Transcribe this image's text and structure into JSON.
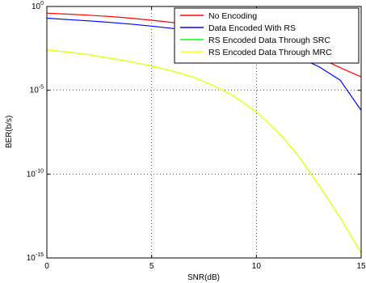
{
  "chart_data": {
    "type": "line",
    "title": "",
    "xlabel": "SNR(dB)",
    "ylabel": "BER(b/s)",
    "xlim": [
      0,
      15
    ],
    "ylim_log10": [
      -15,
      0
    ],
    "yscale": "log",
    "grid": true,
    "legend_position": "top-right",
    "x_ticks": [
      "0",
      "5",
      "10",
      "15"
    ],
    "y_ticks": [
      {
        "base": "10",
        "exp": "0",
        "log10": 0
      },
      {
        "base": "10",
        "exp": "-5",
        "log10": -5
      },
      {
        "base": "10",
        "exp": "-10",
        "log10": -10
      },
      {
        "base": "10",
        "exp": "-15",
        "log10": -15
      }
    ],
    "series": [
      {
        "name": "No Encoding",
        "color": "#ff0000",
        "x": [
          0,
          1,
          2,
          3,
          4,
          5,
          6,
          7,
          8,
          9,
          10,
          11,
          12,
          13,
          14,
          15
        ],
        "log10_y": [
          -0.4,
          -0.46,
          -0.52,
          -0.6,
          -0.7,
          -0.82,
          -0.96,
          -1.13,
          -1.33,
          -1.56,
          -1.84,
          -2.17,
          -2.57,
          -3.06,
          -3.65,
          -4.2
        ]
      },
      {
        "name": "Data Encoded With RS",
        "color": "#0000ff",
        "x": [
          0,
          1,
          2,
          3,
          4,
          5,
          6,
          7,
          8,
          9,
          10,
          11,
          12,
          13,
          14,
          15
        ],
        "log10_y": [
          -0.7,
          -0.78,
          -0.86,
          -0.95,
          -1.05,
          -1.17,
          -1.31,
          -1.48,
          -1.68,
          -1.92,
          -2.22,
          -2.58,
          -3.02,
          -3.6,
          -4.4,
          -6.2
        ]
      },
      {
        "name": "RS Encoded Data Through SRC",
        "color": "#00ff00",
        "x": [
          0,
          1,
          2,
          3,
          4,
          5,
          6,
          7,
          8,
          9,
          10,
          11,
          12,
          13,
          14,
          15
        ],
        "log10_y": [
          -2.6,
          -2.72,
          -2.88,
          -3.08,
          -3.3,
          -3.55,
          -3.85,
          -4.22,
          -4.75,
          -5.4,
          -6.3,
          -7.45,
          -8.9,
          -10.7,
          -12.6,
          -14.7
        ]
      },
      {
        "name": "RS Encoded Data Through MRC",
        "color": "#ffff00",
        "x": [
          0,
          1,
          2,
          3,
          4,
          5,
          6,
          7,
          8,
          9,
          10,
          11,
          12,
          13,
          14,
          15
        ],
        "log10_y": [
          -2.6,
          -2.72,
          -2.88,
          -3.08,
          -3.3,
          -3.55,
          -3.85,
          -4.22,
          -4.75,
          -5.4,
          -6.3,
          -7.45,
          -8.9,
          -10.7,
          -12.6,
          -14.7
        ]
      }
    ]
  }
}
